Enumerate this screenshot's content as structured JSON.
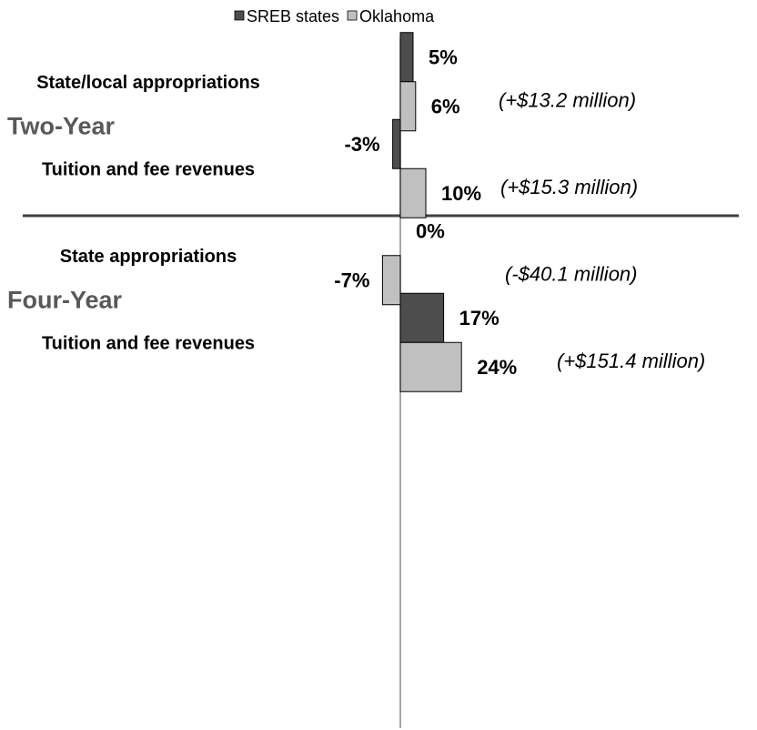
{
  "chart_data": {
    "type": "bar",
    "orientation": "horizontal",
    "groups": [
      "Two-Year",
      "Four-Year"
    ],
    "categories": [
      "State/local appropriations",
      "Tuition and fee revenues",
      "State appropriations",
      "Tuition and fee revenues"
    ],
    "series": [
      {
        "name": "SREB states",
        "color": "#4d4d4d",
        "values": [
          5,
          -3,
          0,
          17
        ],
        "value_labels": [
          "5%",
          "-3%",
          "0%",
          "17%"
        ]
      },
      {
        "name": "Oklahoma",
        "color": "#c0c0c0",
        "values": [
          6,
          10,
          -7,
          24
        ],
        "value_labels": [
          "6%",
          "10%",
          "-7%",
          "24%"
        ]
      }
    ],
    "annotations": [
      "(+$13.2 million)",
      "(+$15.3 million)",
      "(-$40.1 million)",
      "(+$151.4 million)"
    ]
  }
}
